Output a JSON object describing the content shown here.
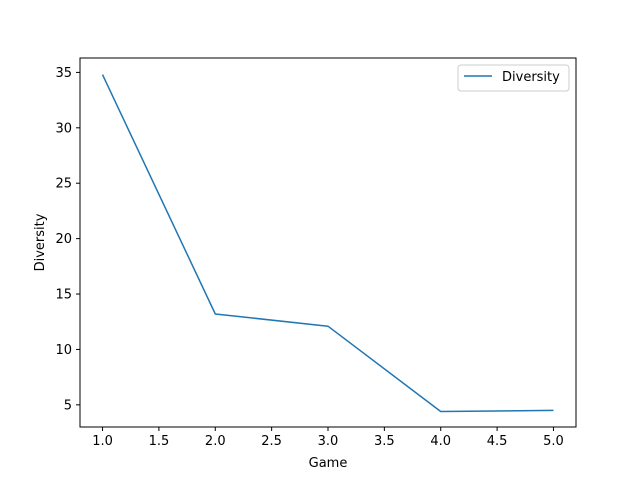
{
  "chart_data": {
    "type": "line",
    "xlabel": "Game",
    "ylabel": "Diversity",
    "xlim": [
      0.8,
      5.2
    ],
    "ylim": [
      3.0,
      36.3
    ],
    "x_ticks": [
      "1.0",
      "1.5",
      "2.0",
      "2.5",
      "3.0",
      "3.5",
      "4.0",
      "4.5",
      "5.0"
    ],
    "y_ticks": [
      "5",
      "10",
      "15",
      "20",
      "25",
      "30",
      "35"
    ],
    "grid": false,
    "legend_position": "top-right",
    "series": [
      {
        "name": "Diversity",
        "color": "#1f77b4",
        "x": [
          1,
          2,
          3,
          4,
          5
        ],
        "y": [
          34.8,
          13.2,
          12.1,
          4.4,
          4.5
        ]
      }
    ]
  }
}
